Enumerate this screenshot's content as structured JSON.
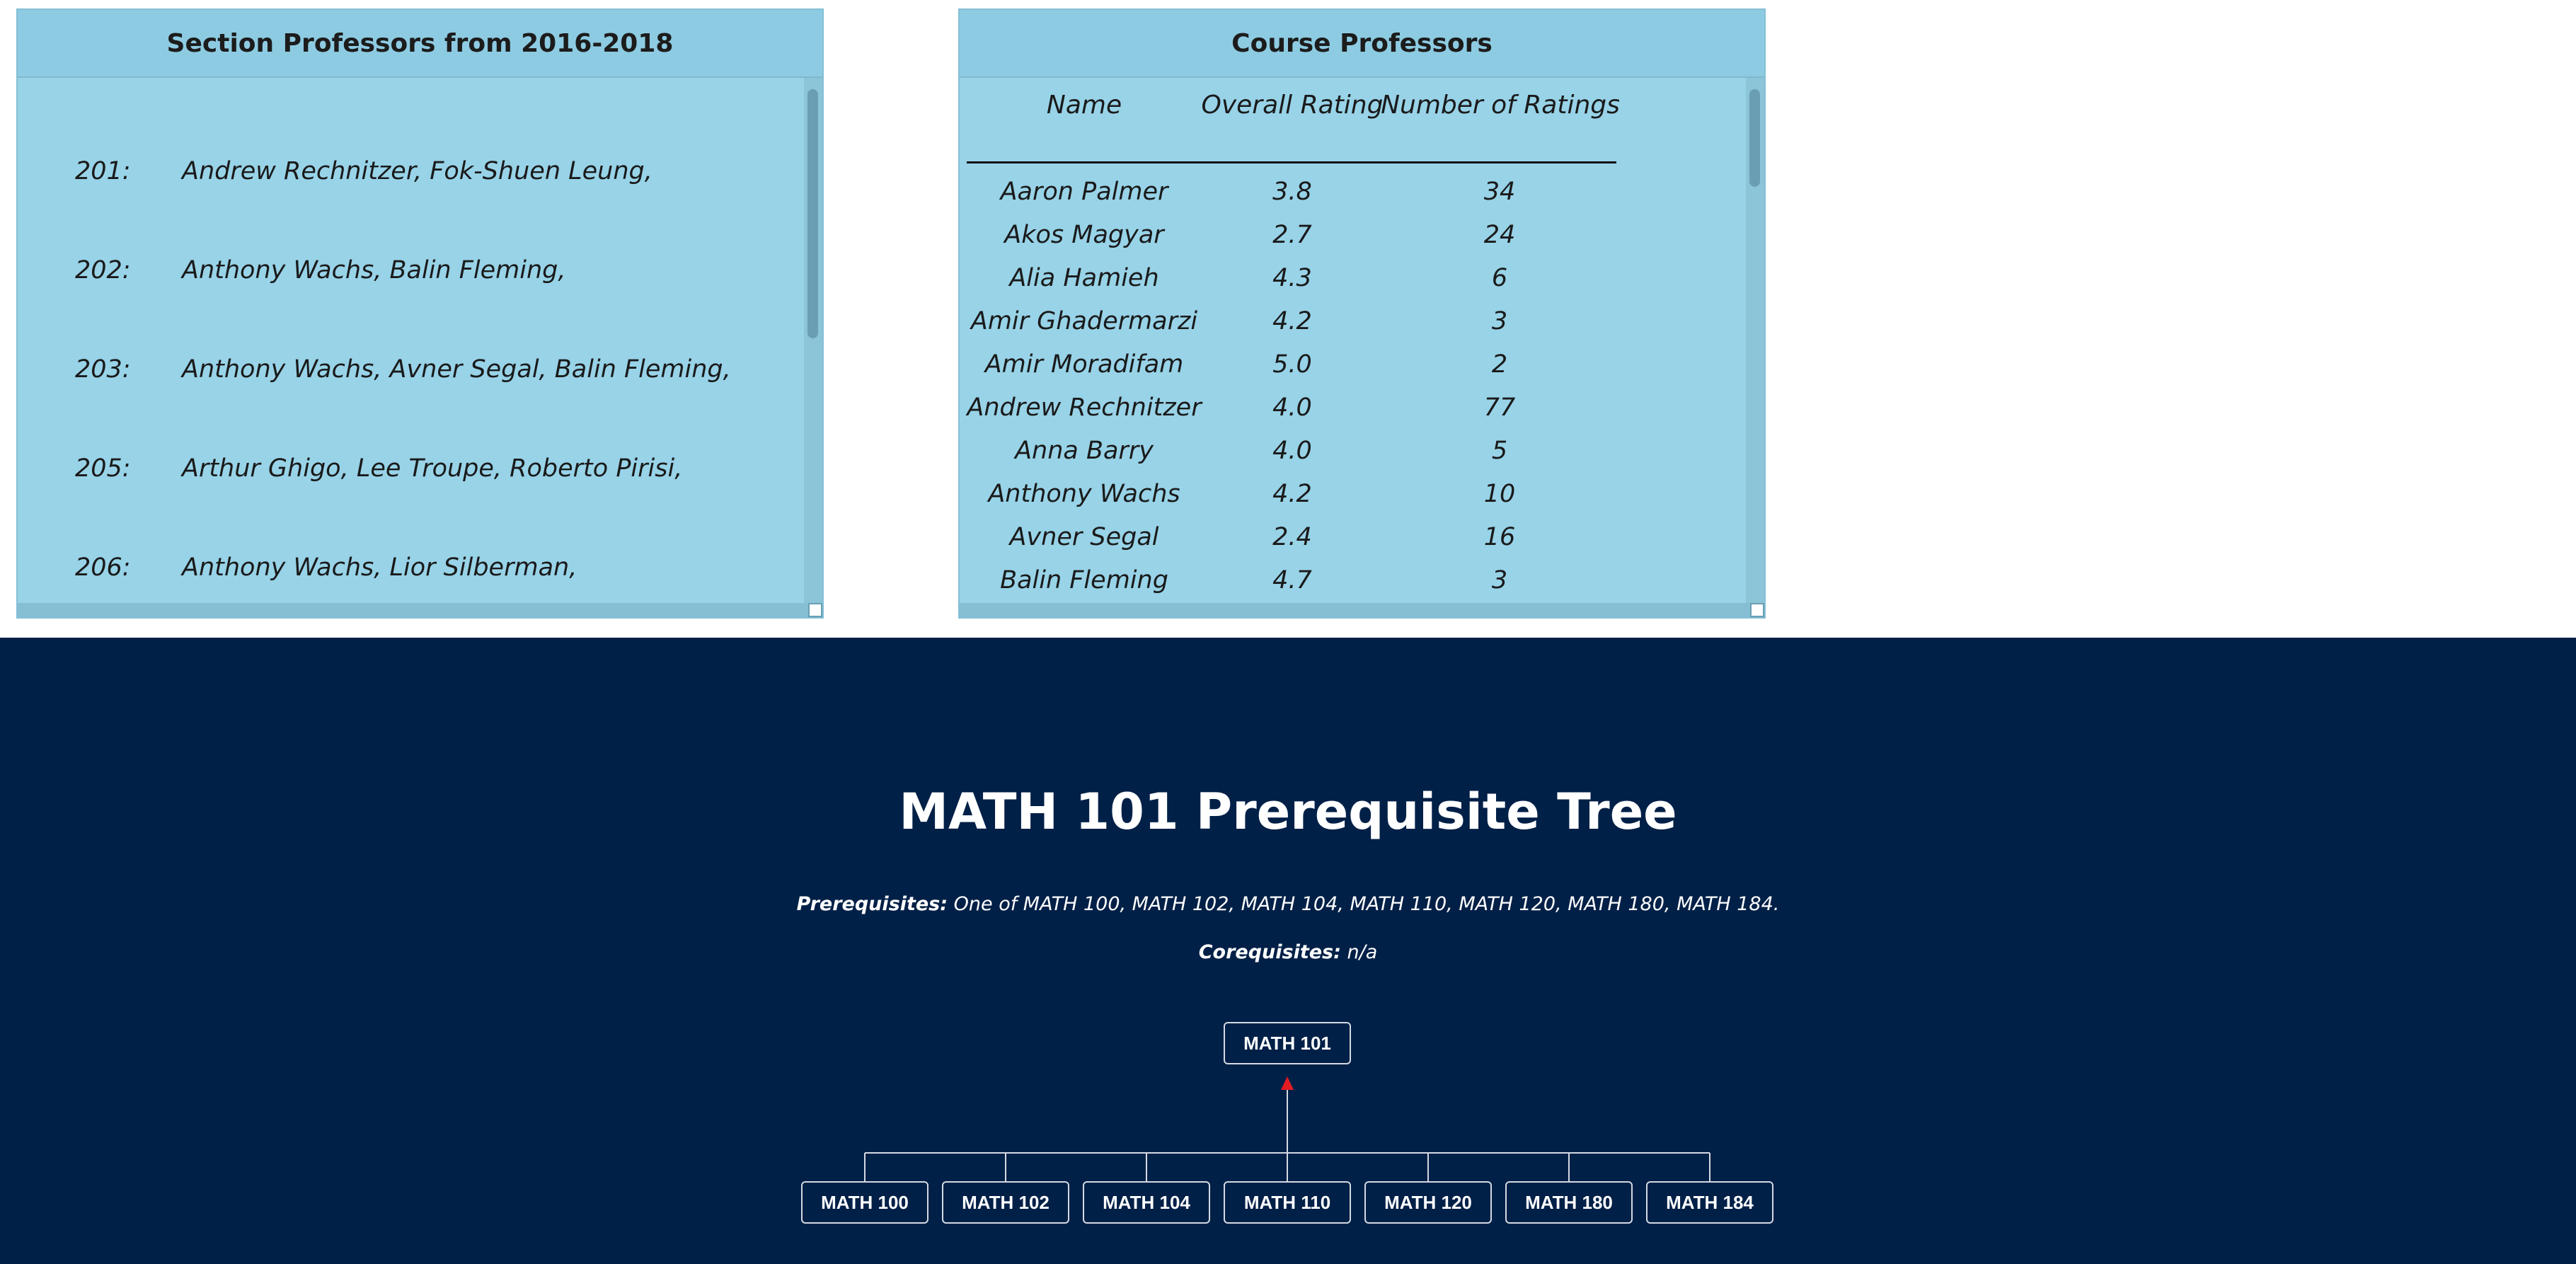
{
  "section_professors": {
    "title": "Section Professors from 2016-2018",
    "rows": [
      {
        "section": "201:",
        "professors": "Andrew Rechnitzer, Fok-Shuen Leung,"
      },
      {
        "section": "202:",
        "professors": "Anthony Wachs, Balin Fleming,"
      },
      {
        "section": "203:",
        "professors": "Anthony Wachs, Avner Segal, Balin Fleming,"
      },
      {
        "section": "205:",
        "professors": "Arthur Ghigo, Lee Troupe, Roberto Pirisi,"
      },
      {
        "section": "206:",
        "professors": "Anthony Wachs, Lior Silberman,"
      }
    ]
  },
  "course_professors": {
    "title": "Course Professors",
    "columns": [
      "Name",
      "Overall Rating",
      "Number of Ratings"
    ],
    "rows": [
      {
        "name": "Aaron Palmer",
        "rating": "3.8",
        "count": "34"
      },
      {
        "name": "Akos Magyar",
        "rating": "2.7",
        "count": "24"
      },
      {
        "name": "Alia Hamieh",
        "rating": "4.3",
        "count": "6"
      },
      {
        "name": "Amir Ghadermarzi",
        "rating": "4.2",
        "count": "3"
      },
      {
        "name": "Amir Moradifam",
        "rating": "5.0",
        "count": "2"
      },
      {
        "name": "Andrew Rechnitzer",
        "rating": "4.0",
        "count": "77"
      },
      {
        "name": "Anna Barry",
        "rating": "4.0",
        "count": "5"
      },
      {
        "name": "Anthony Wachs",
        "rating": "4.2",
        "count": "10"
      },
      {
        "name": "Avner Segal",
        "rating": "2.4",
        "count": "16"
      },
      {
        "name": "Balin Fleming",
        "rating": "4.7",
        "count": "3"
      }
    ]
  },
  "prereq_tree": {
    "title": "MATH 101 Prerequisite Tree",
    "prerequisites_label": "Prerequisites:",
    "prerequisites_value": "One of MATH 100, MATH 102, MATH 104, MATH 110, MATH 120, MATH 180, MATH 184.",
    "corequisites_label": "Corequisites:",
    "corequisites_value": "n/a",
    "root": "MATH 101",
    "children": [
      "MATH 100",
      "MATH 102",
      "MATH 104",
      "MATH 110",
      "MATH 120",
      "MATH 180",
      "MATH 184"
    ]
  },
  "colors": {
    "panel_background": "#98d3e8",
    "navy_background": "#012047",
    "arrow": "#e31b23"
  }
}
